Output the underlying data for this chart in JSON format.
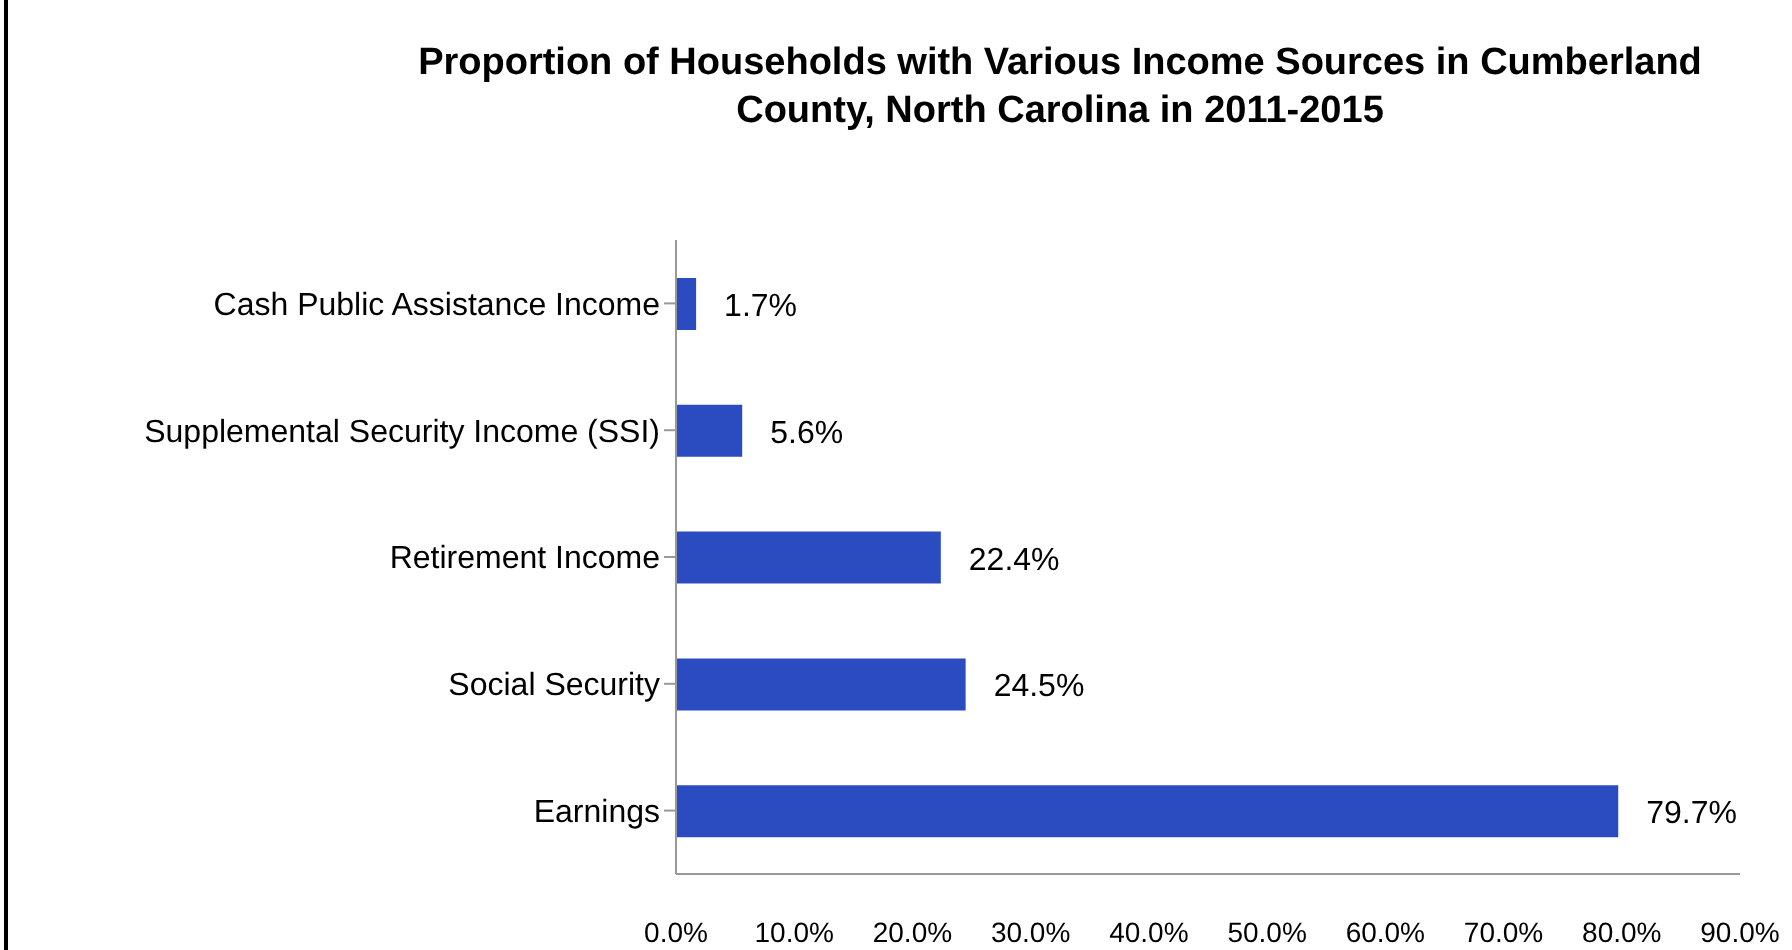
{
  "chart_data": {
    "type": "bar",
    "orientation": "horizontal",
    "title": "Proportion of Households with Various Income Sources in Cumberland County, North Carolina in 2011-2015",
    "categories": [
      "Cash Public Assistance Income",
      "Supplemental Security Income (SSI)",
      "Retirement Income",
      "Social Security",
      "Earnings"
    ],
    "values": [
      1.7,
      5.6,
      22.4,
      24.5,
      79.7
    ],
    "value_labels": [
      "1.7%",
      "5.6%",
      "22.4%",
      "24.5%",
      "79.7%"
    ],
    "color": "#2a4cc0",
    "xlim": [
      0,
      90
    ],
    "xticks": [
      {
        "value": 0,
        "label": "0.0%"
      },
      {
        "value": 10,
        "label": "10.0%"
      },
      {
        "value": 20,
        "label": "20.0%"
      },
      {
        "value": 30,
        "label": "30.0%"
      },
      {
        "value": 40,
        "label": "40.0%"
      },
      {
        "value": 50,
        "label": "50.0%"
      },
      {
        "value": 60,
        "label": "60.0%"
      },
      {
        "value": 70,
        "label": "70.0%"
      },
      {
        "value": 80,
        "label": "80.0%"
      },
      {
        "value": 90,
        "label": "90.0%"
      }
    ],
    "grid": false,
    "legend": false
  }
}
